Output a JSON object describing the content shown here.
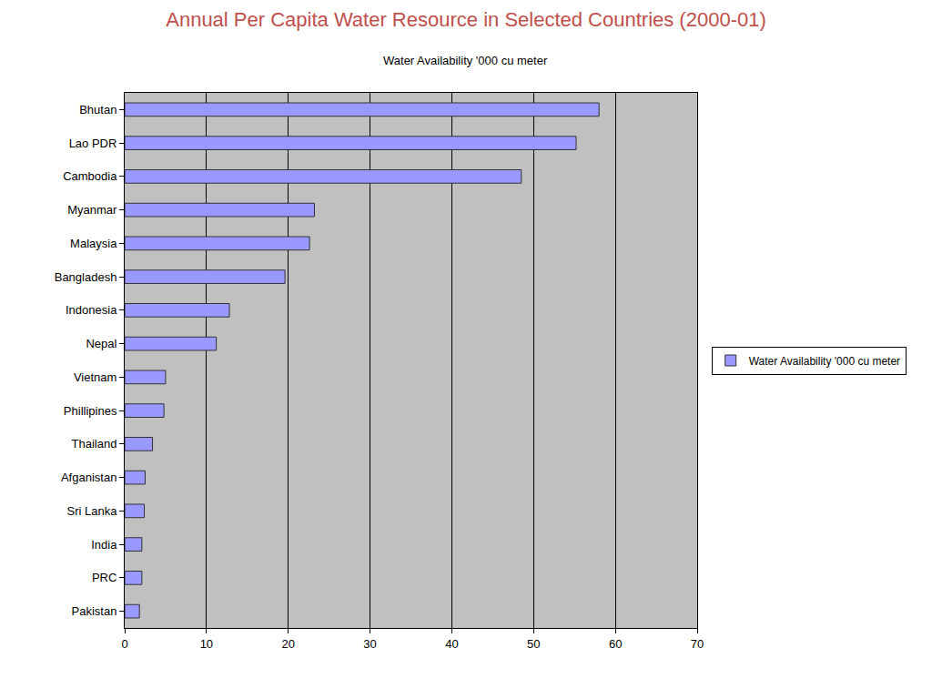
{
  "chart_data": {
    "type": "bar",
    "orientation": "horizontal",
    "title": "Annual Per Capita Water Resource in Selected Countries (2000-01)",
    "subtitle": "Water Availability '000 cu meter",
    "categories": [
      "Bhutan",
      "Lao PDR",
      "Cambodia",
      "Myanmar",
      "Malaysia",
      "Bangladesh",
      "Indonesia",
      "Nepal",
      "Vietnam",
      "Phillipines",
      "Thailand",
      "Afganistan",
      "Sri Lanka",
      "India",
      "PRC",
      "Pakistan"
    ],
    "series": [
      {
        "name": "Water Availability '000 cu meter",
        "color": "#9999ff",
        "values": [
          58,
          55.2,
          48.5,
          23.2,
          22.6,
          19.6,
          12.8,
          11.2,
          5,
          4.8,
          3.4,
          2.5,
          2.4,
          2.1,
          2.1,
          1.8
        ]
      }
    ],
    "xlim": [
      0,
      70
    ],
    "xticks": [
      0,
      10,
      20,
      30,
      40,
      50,
      60,
      70
    ],
    "grid": true,
    "legend": "right"
  }
}
